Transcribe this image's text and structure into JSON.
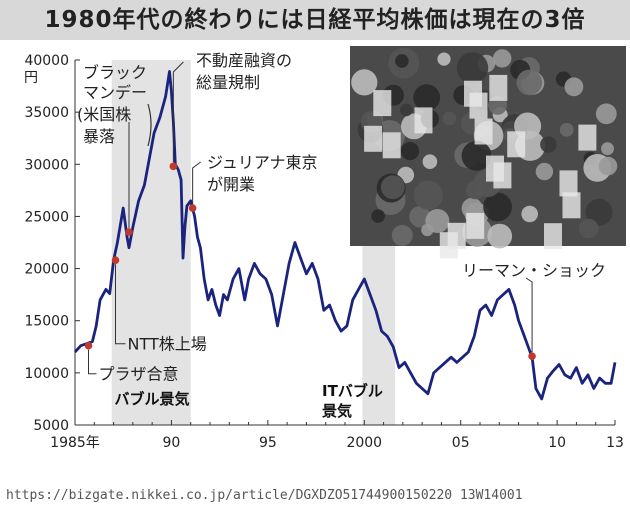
{
  "page": {
    "title": "1980年代の終わりには日経平均株価は現在の3倍",
    "source_url": "https://bizgate.nikkei.co.jp/article/DGXDZO51744900150220 13W14001"
  },
  "photo": {
    "description_icon": "stock-traders-photo-icon"
  },
  "chart_data": {
    "type": "line",
    "title": "1980年代の終わりには日経平均株価は現在の3倍",
    "xlabel": "",
    "ylabel": "円",
    "y_unit": "円",
    "xlim": [
      1985,
      2013
    ],
    "ylim": [
      5000,
      40000
    ],
    "x_ticks": [
      {
        "value": 1985,
        "label": "1985年"
      },
      {
        "value": 1990,
        "label": "90"
      },
      {
        "value": 1995,
        "label": "95"
      },
      {
        "value": 2000,
        "label": "2000"
      },
      {
        "value": 2005,
        "label": "05"
      },
      {
        "value": 2010,
        "label": "10"
      },
      {
        "value": 2013,
        "label": "13"
      }
    ],
    "y_ticks": [
      5000,
      10000,
      15000,
      20000,
      25000,
      30000,
      35000,
      40000
    ],
    "grid": false,
    "line_color": "#1a237e",
    "series": [
      {
        "x": [
          1985.0,
          1985.3,
          1985.6,
          1985.9,
          1986.1,
          1986.3,
          1986.6,
          1986.8,
          1987.0,
          1987.2,
          1987.5,
          1987.7,
          1987.8,
          1988.0,
          1988.3,
          1988.6,
          1988.9,
          1989.1,
          1989.4,
          1989.7,
          1989.9,
          1990.0,
          1990.1,
          1990.2,
          1990.35,
          1990.5,
          1990.6,
          1990.7,
          1990.8,
          1991.0,
          1991.2,
          1991.35,
          1991.5,
          1991.7,
          1991.9,
          1992.1,
          1992.3,
          1992.5,
          1992.7,
          1992.9,
          1993.2,
          1993.5,
          1993.8,
          1994.0,
          1994.3,
          1994.6,
          1994.9,
          1995.2,
          1995.5,
          1995.8,
          1996.1,
          1996.4,
          1996.7,
          1997.0,
          1997.3,
          1997.6,
          1997.9,
          1998.2,
          1998.5,
          1998.8,
          1999.1,
          1999.4,
          1999.7,
          2000.0,
          2000.3,
          2000.6,
          2000.9,
          2001.2,
          2001.5,
          2001.8,
          2002.1,
          2002.4,
          2002.7,
          2003.0,
          2003.3,
          2003.6,
          2003.9,
          2004.2,
          2004.5,
          2004.8,
          2005.1,
          2005.4,
          2005.7,
          2006.0,
          2006.3,
          2006.6,
          2006.9,
          2007.2,
          2007.5,
          2007.8,
          2008.0,
          2008.3,
          2008.5,
          2008.7,
          2008.9,
          2009.2,
          2009.5,
          2009.8,
          2010.1,
          2010.4,
          2010.7,
          2011.0,
          2011.3,
          2011.6,
          2011.9,
          2012.2,
          2012.5,
          2012.8,
          2013.0
        ],
        "y": [
          12000,
          12600,
          12800,
          13000,
          14500,
          17000,
          18000,
          17600,
          20800,
          22500,
          25800,
          23000,
          22000,
          24000,
          26500,
          28000,
          31000,
          33000,
          34500,
          36500,
          38900,
          37000,
          34000,
          30000,
          29500,
          28500,
          21000,
          24000,
          26000,
          26500,
          25000,
          23000,
          22000,
          19000,
          17000,
          18000,
          16500,
          15500,
          17500,
          17000,
          19000,
          20000,
          17000,
          19000,
          20500,
          19500,
          19000,
          17500,
          14500,
          17500,
          20500,
          22500,
          21000,
          19500,
          20500,
          19000,
          16000,
          16500,
          15000,
          14000,
          14500,
          17000,
          18000,
          19000,
          17500,
          16000,
          14000,
          13500,
          12500,
          10500,
          11000,
          10000,
          9000,
          8500,
          8000,
          10000,
          10500,
          11000,
          11500,
          11000,
          11500,
          12000,
          13500,
          16000,
          16500,
          15500,
          17000,
          17500,
          18000,
          16500,
          15000,
          13500,
          12500,
          11500,
          8500,
          7500,
          9500,
          10200,
          10800,
          9800,
          9500,
          10500,
          9000,
          9800,
          8500,
          9500,
          9000,
          9000,
          11000
        ]
      }
    ],
    "shaded_periods": [
      {
        "x_start": 1986.9,
        "x_end": 1991.0,
        "label": "バブル景気"
      },
      {
        "x_start": 1999.9,
        "x_end": 2001.6,
        "label": "ITバブル景気"
      }
    ],
    "event_points": [
      {
        "x": 1985.7,
        "y": 12600,
        "label": "プラザ合意"
      },
      {
        "x": 1987.1,
        "y": 20800,
        "label": "NTT株上場"
      },
      {
        "x": 1987.8,
        "y": 23500,
        "label": "ブラックマンデー(米国株暴落"
      },
      {
        "x": 1990.1,
        "y": 29800,
        "label": "不動産融資の総量規制"
      },
      {
        "x": 1991.1,
        "y": 25800,
        "label": "ジュリアナ東京が開業"
      },
      {
        "x": 2008.7,
        "y": 11600,
        "label": "リーマン・ショック"
      }
    ],
    "annotation_lines": {
      "plaza": [
        "プラザ合意"
      ],
      "ntt": [
        "NTT株上場"
      ],
      "black_monday": [
        "ブラック",
        "マンデー",
        "(米国株",
        "暴落"
      ],
      "soryo": [
        "不動産融資の",
        "総量規制"
      ],
      "juliana": [
        "ジュリアナ東京",
        "が開業"
      ],
      "lehman": [
        "リーマン・ショック"
      ],
      "bubble": [
        "バブル景気"
      ],
      "it_bubble": [
        "ITバブル",
        "景気"
      ]
    },
    "point_color": "#c0392b",
    "shade_color": "#e3e3e3"
  }
}
